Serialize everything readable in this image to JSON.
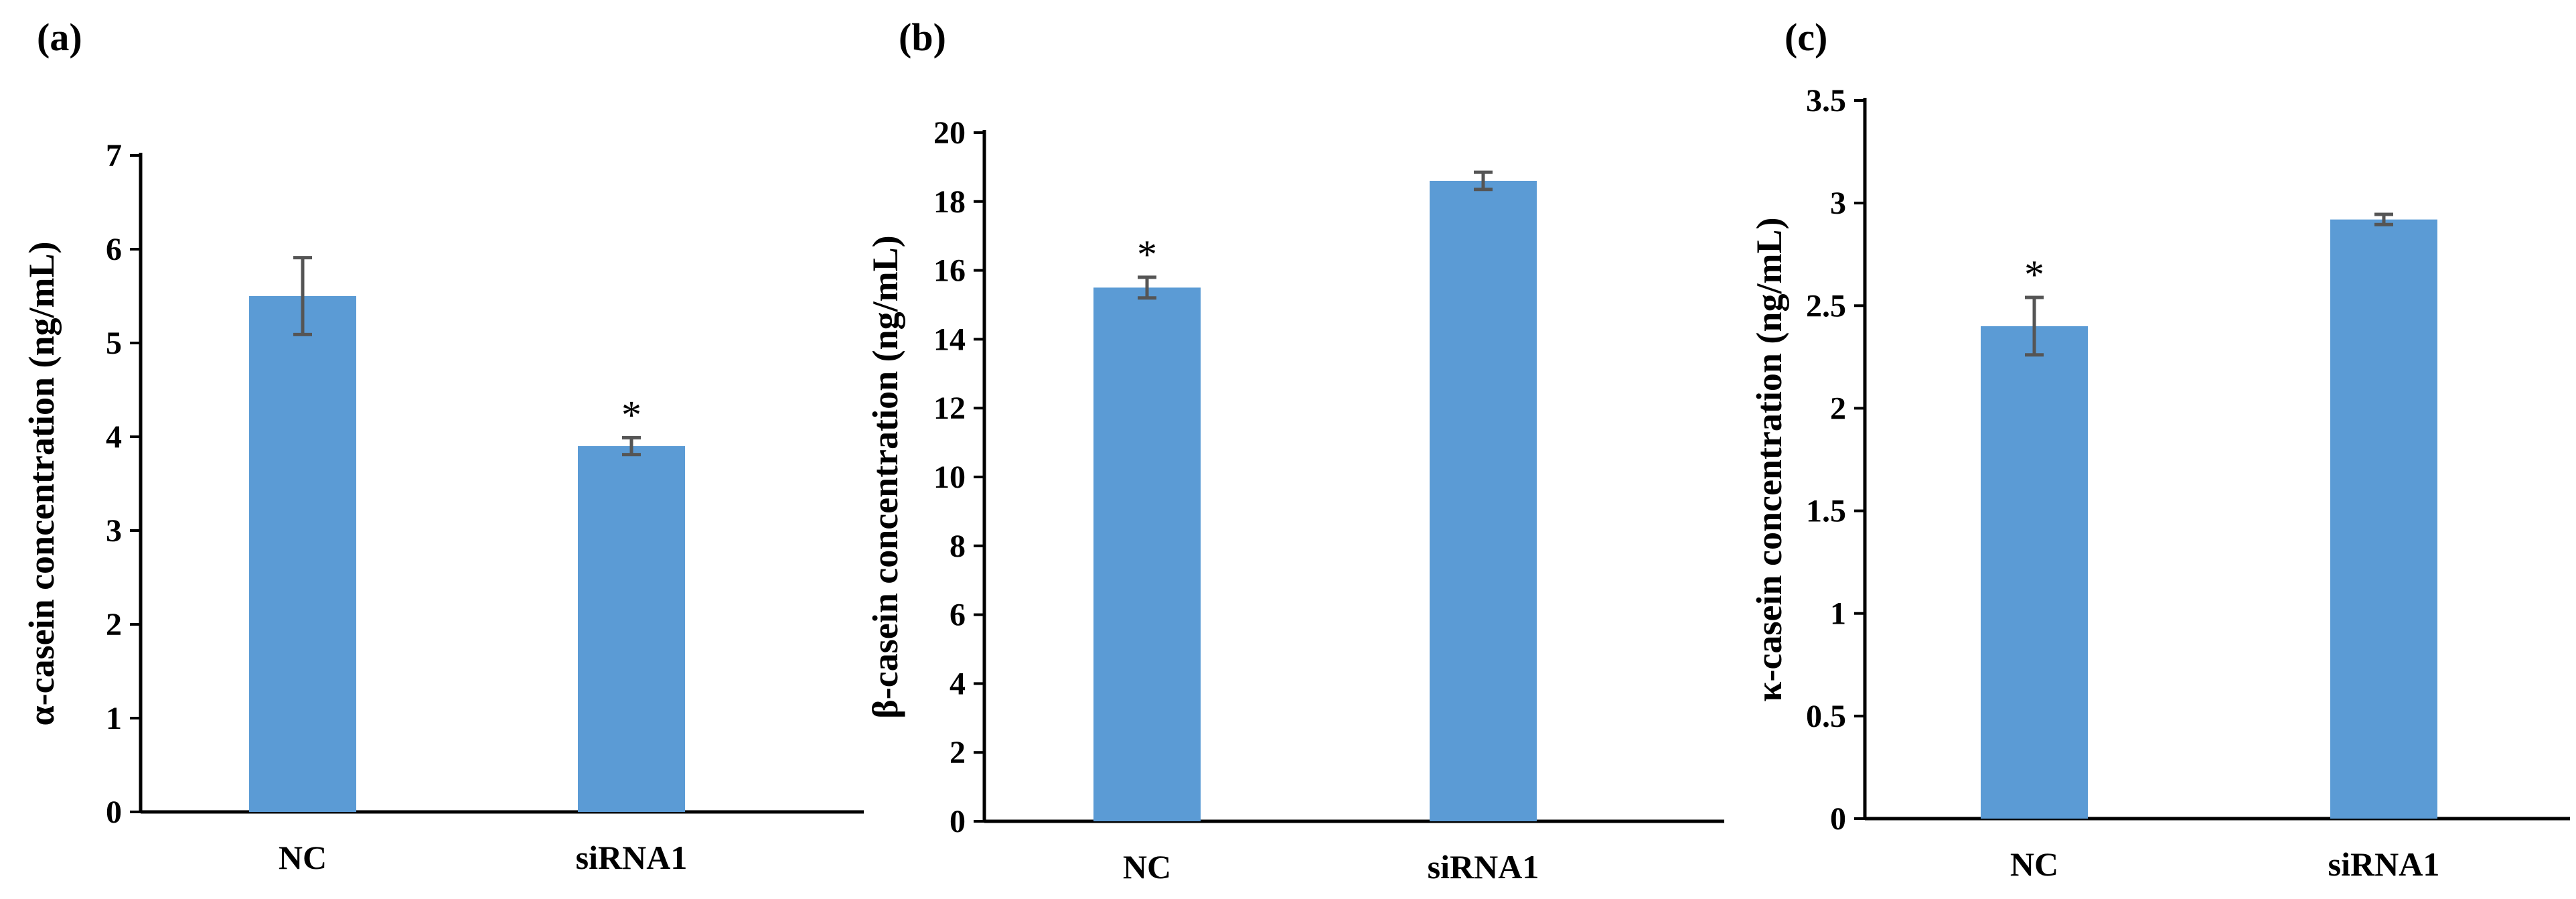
{
  "colors": {
    "bar": "#5B9BD5",
    "error_bar": "#555555",
    "axis": "#000000"
  },
  "chart_data": [
    {
      "type": "bar",
      "panel_label": "(a)",
      "ylabel": "α-casein concentration  (ng/mL)",
      "categories": [
        "NC",
        "siRNA1"
      ],
      "values": [
        5.5,
        3.9
      ],
      "errors": [
        0.41,
        0.09
      ],
      "significance": [
        "",
        "*"
      ],
      "ylim": [
        0,
        7
      ],
      "yticks": [
        0,
        1,
        2,
        3,
        4,
        5,
        6,
        7
      ],
      "ytick_labels": [
        "0",
        "1",
        "2",
        "3",
        "4",
        "5",
        "6",
        "7"
      ]
    },
    {
      "type": "bar",
      "panel_label": "(b)",
      "ylabel": "β-casein concentration  (ng/mL)",
      "categories": [
        "NC",
        "siRNA1"
      ],
      "values": [
        15.5,
        18.6
      ],
      "errors": [
        0.3,
        0.25
      ],
      "significance": [
        "*",
        ""
      ],
      "ylim": [
        0,
        20
      ],
      "yticks": [
        0,
        2,
        4,
        6,
        8,
        10,
        12,
        14,
        16,
        18,
        20
      ],
      "ytick_labels": [
        "0",
        "2",
        "4",
        "6",
        "8",
        "10",
        "12",
        "14",
        "16",
        "18",
        "20"
      ]
    },
    {
      "type": "bar",
      "panel_label": "(c)",
      "ylabel": "κ-casein concentration  (ng/mL)",
      "categories": [
        "NC",
        "siRNA1"
      ],
      "values": [
        2.4,
        2.92
      ],
      "errors": [
        0.14,
        0.025
      ],
      "significance": [
        "*",
        ""
      ],
      "ylim": [
        0,
        3.5
      ],
      "yticks": [
        0,
        0.5,
        1,
        1.5,
        2,
        2.5,
        3,
        3.5
      ],
      "ytick_labels": [
        "0",
        "0.5",
        "1",
        "1.5",
        "2",
        "2.5",
        "3",
        "3.5"
      ]
    }
  ]
}
